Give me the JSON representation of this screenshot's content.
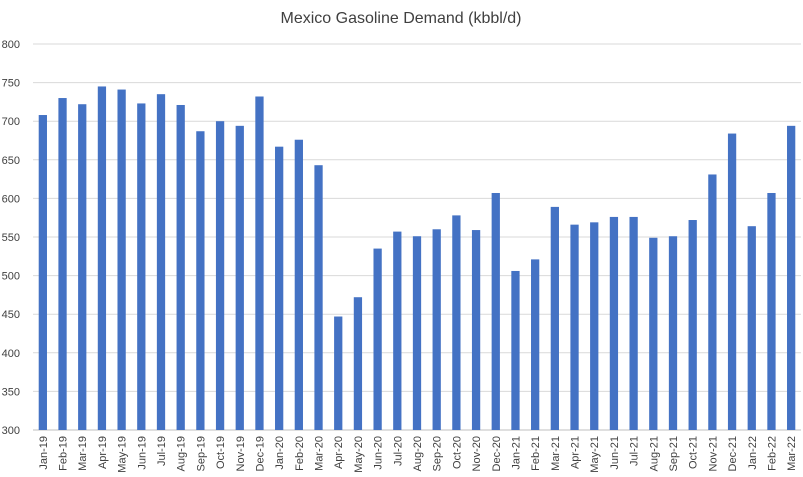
{
  "chart_data": {
    "type": "bar",
    "title": "Mexico Gasoline Demand (kbbl/d)",
    "xlabel": "",
    "ylabel": "",
    "ylim": [
      300,
      800
    ],
    "yticks": [
      300,
      350,
      400,
      450,
      500,
      550,
      600,
      650,
      700,
      750,
      800
    ],
    "grid": true,
    "legend": "none",
    "bar_color": "#4472C4",
    "categories": [
      "Jan-19",
      "Feb-19",
      "Mar-19",
      "Apr-19",
      "May-19",
      "Jun-19",
      "Jul-19",
      "Aug-19",
      "Sep-19",
      "Oct-19",
      "Nov-19",
      "Dec-19",
      "Jan-20",
      "Feb-20",
      "Mar-20",
      "Apr-20",
      "May-20",
      "Jun-20",
      "Jul-20",
      "Aug-20",
      "Sep-20",
      "Oct-20",
      "Nov-20",
      "Dec-20",
      "Jan-21",
      "Feb-21",
      "Mar-21",
      "Apr-21",
      "May-21",
      "Jun-21",
      "Jul-21",
      "Aug-21",
      "Sep-21",
      "Oct-21",
      "Nov-21",
      "Dec-21",
      "Jan-22",
      "Feb-22",
      "Mar-22"
    ],
    "values": [
      708,
      730,
      722,
      745,
      741,
      723,
      735,
      721,
      687,
      700,
      694,
      732,
      667,
      676,
      643,
      447,
      472,
      535,
      557,
      551,
      560,
      578,
      559,
      607,
      506,
      521,
      589,
      566,
      569,
      576,
      576,
      549,
      551,
      572,
      631,
      684,
      564,
      607,
      694
    ]
  }
}
